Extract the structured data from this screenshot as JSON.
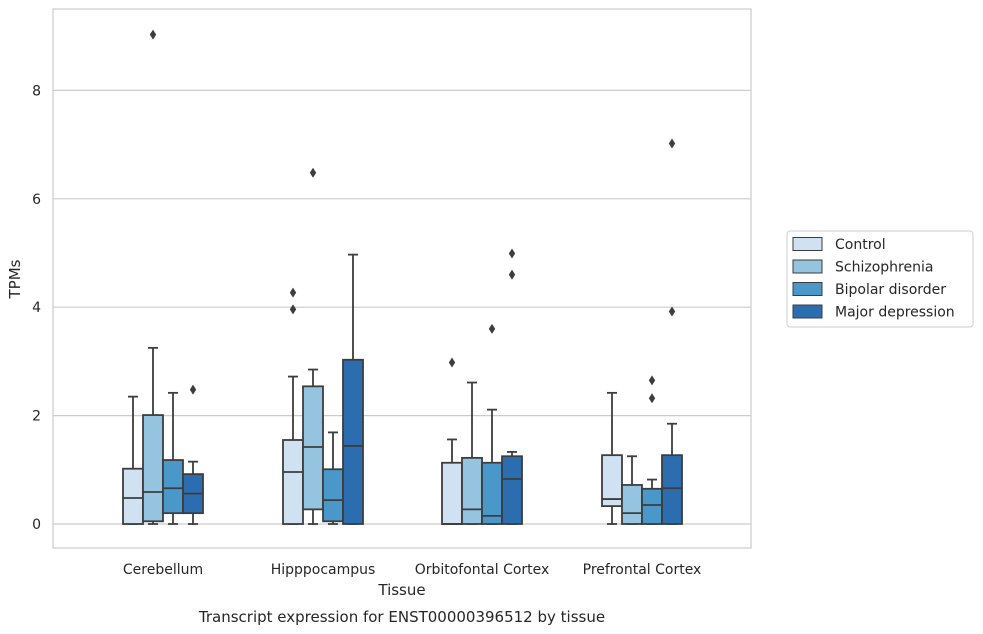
{
  "chart_data": {
    "type": "box",
    "title": "",
    "caption": "Transcript expression for ENST00000396512 by tissue",
    "xlabel": "Tissue",
    "ylabel": "TPMs",
    "ylim": [
      -0.45,
      9.6
    ],
    "yticks": [
      0,
      2,
      4,
      6,
      8
    ],
    "grid": "horizontal",
    "legend_position": "right",
    "categories": [
      "Cerebellum",
      "Hipppocampus",
      "Orbitofontal Cortex",
      "Prefrontal Cortex"
    ],
    "series": [
      {
        "name": "Control",
        "color": "#d0e1f2",
        "boxes": [
          {
            "whislo": 0,
            "q1": 0,
            "med": 0.48,
            "q3": 1.02,
            "whishi": 2.35,
            "fliers": []
          },
          {
            "whislo": 0,
            "q1": 0,
            "med": 0.96,
            "q3": 1.55,
            "whishi": 2.72,
            "fliers": [
              3.96,
              4.27
            ]
          },
          {
            "whislo": 0,
            "q1": 0,
            "med": 0,
            "q3": 1.13,
            "whishi": 1.56,
            "fliers": [
              2.98
            ]
          },
          {
            "whislo": 0,
            "q1": 0.33,
            "med": 0.46,
            "q3": 1.27,
            "whishi": 2.42,
            "fliers": []
          }
        ]
      },
      {
        "name": "Schizophrenia",
        "color": "#94c4df",
        "boxes": [
          {
            "whislo": 0,
            "q1": 0.05,
            "med": 0.59,
            "q3": 2.01,
            "whishi": 3.25,
            "fliers": [
              9.03
            ]
          },
          {
            "whislo": 0,
            "q1": 0.27,
            "med": 1.42,
            "q3": 2.54,
            "whishi": 2.85,
            "fliers": [
              6.48
            ]
          },
          {
            "whislo": 0,
            "q1": 0,
            "med": 0.27,
            "q3": 1.22,
            "whishi": 2.61,
            "fliers": []
          },
          {
            "whislo": 0,
            "q1": 0,
            "med": 0.2,
            "q3": 0.72,
            "whishi": 1.25,
            "fliers": []
          }
        ]
      },
      {
        "name": "Bipolar disorder",
        "color": "#4a98c9",
        "boxes": [
          {
            "whislo": 0,
            "q1": 0.2,
            "med": 0.66,
            "q3": 1.18,
            "whishi": 2.42,
            "fliers": []
          },
          {
            "whislo": 0,
            "q1": 0.05,
            "med": 0.44,
            "q3": 1.01,
            "whishi": 1.69,
            "fliers": []
          },
          {
            "whislo": 0,
            "q1": 0,
            "med": 0.15,
            "q3": 1.13,
            "whishi": 2.11,
            "fliers": [
              3.6
            ]
          },
          {
            "whislo": 0,
            "q1": 0,
            "med": 0.35,
            "q3": 0.65,
            "whishi": 0.82,
            "fliers": [
              2.32,
              2.65
            ]
          }
        ]
      },
      {
        "name": "Major depression",
        "color": "#2b6daf",
        "boxes": [
          {
            "whislo": 0,
            "q1": 0.2,
            "med": 0.56,
            "q3": 0.92,
            "whishi": 1.15,
            "fliers": [
              2.48
            ]
          },
          {
            "whislo": 0,
            "q1": 0,
            "med": 1.44,
            "q3": 3.03,
            "whishi": 4.97,
            "fliers": []
          },
          {
            "whislo": 0,
            "q1": 0,
            "med": 0.83,
            "q3": 1.25,
            "whishi": 1.33,
            "fliers": [
              4.6,
              4.99
            ]
          },
          {
            "whislo": 0,
            "q1": 0,
            "med": 0.66,
            "q3": 1.27,
            "whishi": 1.85,
            "fliers": [
              3.92,
              7.02
            ]
          }
        ]
      }
    ]
  }
}
